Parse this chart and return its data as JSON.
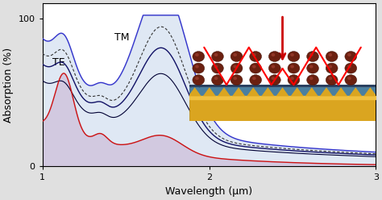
{
  "xlabel": "Wavelength (μm)",
  "ylabel": "Absorption (%)",
  "xlim": [
    1,
    3
  ],
  "ylim": [
    0,
    110
  ],
  "yticks": [
    0,
    100
  ],
  "xticks": [
    1,
    2,
    3
  ],
  "fig_bg": "#e0e0e0",
  "plot_bg": "#ffffff",
  "label_TE": "TE",
  "label_TM": "TM",
  "te_color": "#cc1111",
  "tm_upper_color": "#3333cc",
  "tm_mid_color": "#111166",
  "tm_lower_color": "#000033",
  "dashed_color": "#333333",
  "fill_pink": "#e0b0cc",
  "fill_blue": "#b8cce8"
}
